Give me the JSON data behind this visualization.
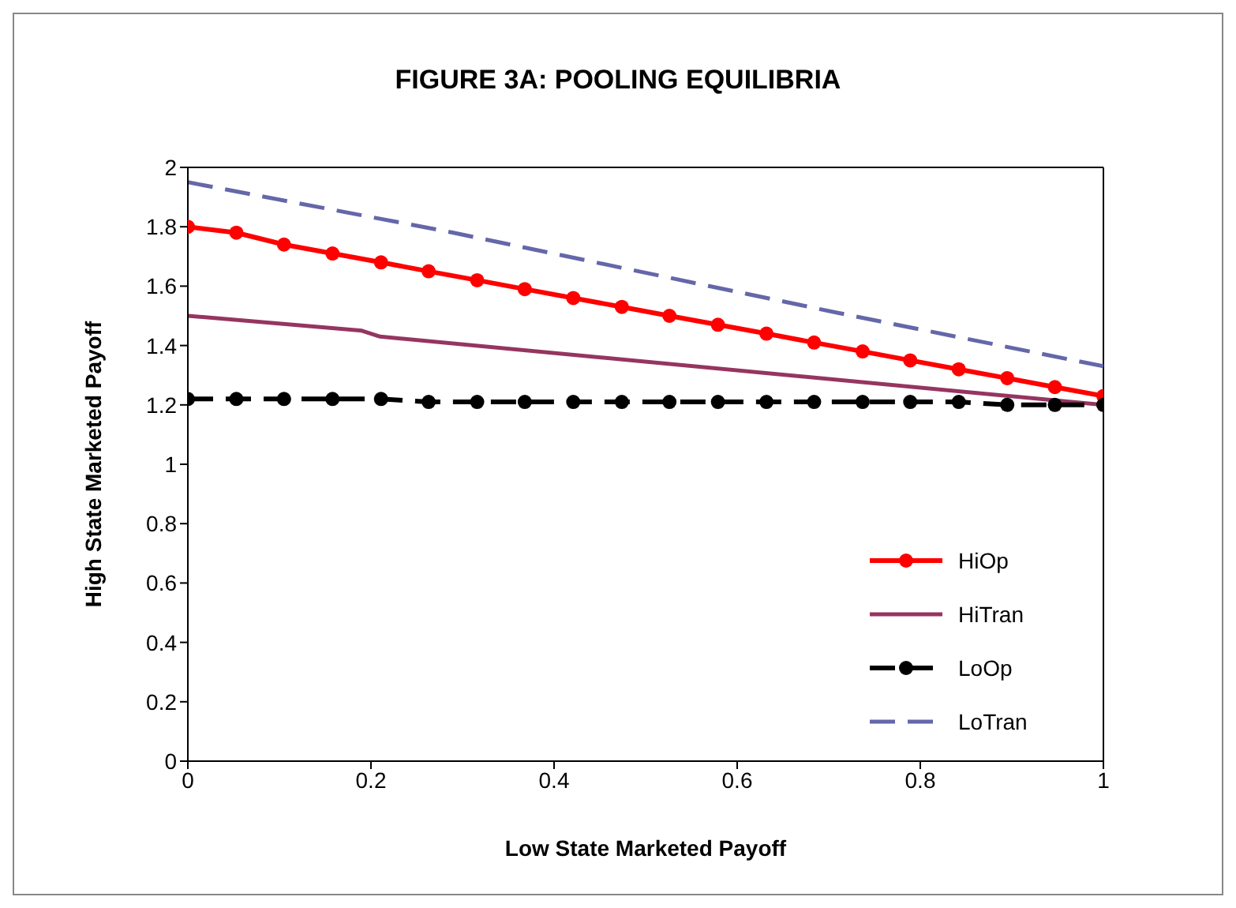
{
  "chart_data": {
    "type": "line",
    "title": "FIGURE 3A: POOLING EQUILIBRIA",
    "xlabel": "Low State Marketed Payoff",
    "ylabel": "High State Marketed Payoff",
    "xlim": [
      0,
      1
    ],
    "xticks": [
      0,
      0.2,
      0.4,
      0.6,
      0.8,
      1
    ],
    "ylim": [
      0,
      2
    ],
    "yticks": [
      0,
      0.2,
      0.4,
      0.6,
      0.8,
      1,
      1.2,
      1.4,
      1.6,
      1.8,
      2
    ],
    "grid": false,
    "legend": "bottom right",
    "series": [
      {
        "name": "HiOp",
        "color": "#ff0000",
        "marker": "circle",
        "line_style": "solid",
        "x": [
          0,
          0.053,
          0.105,
          0.158,
          0.211,
          0.263,
          0.316,
          0.368,
          0.421,
          0.474,
          0.526,
          0.579,
          0.632,
          0.684,
          0.737,
          0.789,
          0.842,
          0.895,
          0.947,
          1
        ],
        "values": [
          1.8,
          1.78,
          1.74,
          1.71,
          1.68,
          1.65,
          1.62,
          1.59,
          1.56,
          1.53,
          1.5,
          1.47,
          1.44,
          1.41,
          1.38,
          1.35,
          1.32,
          1.29,
          1.26,
          1.23
        ]
      },
      {
        "name": "HiTran",
        "color": "#953560",
        "marker": "none",
        "line_style": "solid",
        "x": [
          0,
          0.19,
          0.21,
          1
        ],
        "values": [
          1.5,
          1.45,
          1.43,
          1.2
        ]
      },
      {
        "name": "LoOp",
        "color": "#000000",
        "marker": "circle",
        "line_style": "dashed",
        "x": [
          0,
          0.053,
          0.105,
          0.158,
          0.211,
          0.263,
          0.316,
          0.368,
          0.421,
          0.474,
          0.526,
          0.579,
          0.632,
          0.684,
          0.737,
          0.789,
          0.842,
          0.895,
          0.947,
          1
        ],
        "values": [
          1.22,
          1.22,
          1.22,
          1.22,
          1.22,
          1.21,
          1.21,
          1.21,
          1.21,
          1.21,
          1.21,
          1.21,
          1.21,
          1.21,
          1.21,
          1.21,
          1.21,
          1.2,
          1.2,
          1.2
        ]
      },
      {
        "name": "LoTran",
        "color": "#6467a8",
        "marker": "none",
        "line_style": "dashed",
        "x": [
          0,
          0.29,
          0.71,
          1
        ],
        "values": [
          1.95,
          1.78,
          1.51,
          1.33
        ]
      }
    ]
  }
}
